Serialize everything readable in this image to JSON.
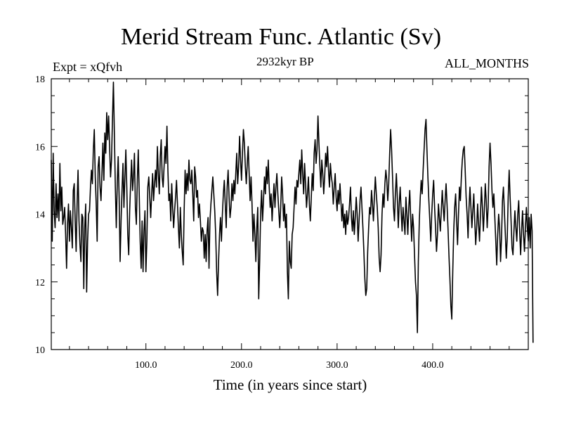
{
  "chart_data": {
    "type": "line",
    "title": "Merid Stream Func. Atlantic (Sv)",
    "subtitle": "2932kyr BP",
    "experiment_label": "Expt = xQfvh",
    "period_label": "ALL_MONTHS",
    "xlabel": "Time (in years since start)",
    "ylabel": "",
    "xlim": [
      1,
      500
    ],
    "ylim": [
      10,
      18
    ],
    "x_ticks": [
      100.0,
      200.0,
      300.0,
      400.0
    ],
    "x_tick_labels": [
      "100.0",
      "200.0",
      "300.0",
      "400.0"
    ],
    "y_ticks": [
      10,
      12,
      14,
      16,
      18
    ],
    "y_tick_labels": [
      "10",
      "12",
      "14",
      "16",
      "18"
    ],
    "series": [
      {
        "name": "Merid Stream Func. Atlantic",
        "x_start": 1,
        "x_step": 1,
        "values": [
          15.6,
          13.2,
          15.8,
          14.1,
          13.6,
          14.9,
          13.9,
          14.6,
          13.8,
          15.5,
          14.1,
          14.8,
          13.7,
          13.9,
          14.2,
          13.4,
          12.4,
          13.7,
          14.3,
          13.2,
          14.1,
          13.6,
          13.0,
          14.7,
          14.9,
          13.8,
          12.9,
          14.3,
          15.3,
          13.8,
          13.1,
          12.6,
          14.0,
          13.9,
          11.8,
          13.6,
          14.3,
          11.7,
          13.2,
          14.0,
          14.1,
          14.8,
          15.3,
          14.9,
          15.9,
          16.5,
          15.1,
          14.3,
          13.2,
          15.4,
          15.7,
          14.8,
          14.4,
          15.2,
          16.1,
          15.0,
          16.4,
          15.8,
          17.0,
          16.2,
          16.9,
          16.0,
          15.1,
          15.6,
          16.8,
          17.9,
          16.4,
          14.8,
          13.6,
          14.9,
          15.7,
          14.5,
          12.6,
          13.8,
          14.7,
          15.5,
          14.2,
          15.1,
          15.9,
          14.8,
          13.4,
          12.8,
          14.1,
          14.9,
          15.6,
          14.7,
          15.1,
          15.8,
          14.2,
          13.7,
          15.0,
          15.9,
          14.6,
          13.2,
          12.4,
          13.8,
          12.3,
          13.5,
          14.1,
          12.3,
          13.2,
          14.8,
          15.1,
          14.5,
          13.9,
          14.6,
          15.2,
          14.4,
          14.9,
          15.3,
          14.8,
          16.0,
          15.2,
          14.6,
          15.7,
          16.2,
          15.1,
          14.8,
          15.4,
          16.0,
          15.5,
          16.6,
          15.3,
          14.4,
          14.6,
          13.8,
          14.9,
          14.2,
          13.6,
          14.1,
          14.5,
          15.0,
          14.3,
          13.6,
          13.0,
          14.2,
          13.4,
          12.9,
          12.5,
          14.1,
          15.3,
          14.6,
          15.2,
          14.7,
          15.6,
          15.0,
          14.9,
          15.3,
          14.6,
          13.8,
          15.4,
          15.1,
          14.5,
          14.7,
          13.9,
          14.3,
          13.8,
          13.2,
          13.6,
          13.5,
          12.7,
          13.4,
          12.6,
          13.5,
          13.9,
          12.4,
          13.8,
          14.3,
          14.7,
          15.1,
          14.6,
          14.1,
          13.4,
          12.3,
          11.6,
          12.6,
          13.4,
          13.9,
          13.2,
          14.0,
          14.6,
          15.0,
          14.3,
          13.6,
          14.8,
          15.3,
          14.5,
          13.9,
          14.2,
          14.9,
          14.4,
          15.0,
          14.6,
          15.2,
          15.8,
          14.9,
          15.4,
          16.3,
          15.6,
          15.0,
          15.8,
          16.5,
          16.1,
          15.4,
          14.9,
          15.5,
          16.0,
          15.2,
          14.4,
          15.1,
          14.3,
          13.2,
          14.0,
          13.4,
          12.6,
          13.6,
          14.2,
          11.5,
          12.6,
          14.0,
          14.7,
          13.8,
          14.4,
          15.1,
          14.6,
          15.4,
          14.9,
          15.6,
          14.8,
          14.2,
          14.6,
          13.8,
          14.4,
          14.9,
          14.2,
          14.8,
          15.2,
          14.6,
          14.1,
          13.6,
          14.2,
          15.1,
          14.6,
          13.8,
          14.3,
          13.6,
          14.0,
          12.3,
          11.5,
          13.2,
          12.6,
          12.4,
          13.4,
          13.6,
          14.2,
          14.8,
          14.3,
          15.0,
          14.8,
          15.2,
          15.6,
          14.9,
          15.9,
          15.2,
          14.6,
          15.5,
          14.9,
          14.2,
          14.6,
          15.1,
          14.3,
          13.8,
          14.5,
          15.2,
          14.7,
          15.8,
          16.2,
          15.5,
          15.9,
          16.9,
          16.1,
          15.4,
          14.8,
          15.6,
          15.2,
          14.6,
          15.1,
          15.8,
          15.4,
          16.0,
          15.3,
          14.8,
          15.5,
          15.1,
          14.9,
          14.3,
          14.8,
          15.2,
          14.5,
          14.1,
          14.7,
          14.3,
          14.9,
          14.4,
          13.8,
          14.3,
          13.6,
          14.0,
          13.4,
          14.1,
          13.7,
          13.9,
          14.3,
          14.8,
          13.9,
          13.5,
          14.1,
          13.4,
          13.9,
          14.5,
          14.0,
          13.2,
          13.8,
          14.4,
          14.8,
          14.2,
          13.6,
          12.9,
          12.1,
          11.6,
          11.8,
          12.9,
          13.6,
          14.2,
          14.0,
          14.7,
          14.3,
          13.8,
          14.5,
          15.1,
          14.6,
          14.2,
          13.6,
          12.7,
          12.3,
          12.8,
          14.0,
          14.6,
          14.2,
          14.9,
          15.3,
          15.0,
          14.4,
          14.9,
          15.8,
          16.5,
          15.9,
          15.1,
          14.2,
          13.8,
          14.6,
          15.2,
          14.5,
          13.6,
          14.3,
          14.8,
          14.1,
          13.5,
          14.2,
          13.8,
          13.4,
          14.5,
          14.0,
          13.4,
          14.2,
          14.7,
          13.9,
          13.2,
          14.0,
          13.6,
          12.8,
          12.0,
          11.6,
          10.5,
          12.6,
          13.8,
          14.5,
          15.0,
          14.6,
          15.3,
          15.9,
          16.5,
          16.8,
          15.9,
          15.1,
          14.4,
          13.8,
          13.2,
          14.0,
          14.6,
          15.0,
          14.2,
          13.6,
          12.9,
          13.4,
          14.3,
          13.9,
          13.5,
          14.1,
          14.7,
          14.2,
          13.8,
          14.4,
          14.9,
          14.3,
          13.6,
          12.8,
          12.1,
          11.3,
          10.9,
          12.3,
          13.5,
          14.2,
          14.6,
          13.8,
          13.1,
          14.0,
          14.8,
          14.4,
          15.1,
          15.6,
          15.9,
          16.0,
          15.3,
          14.5,
          14.0,
          13.3,
          14.2,
          14.8,
          14.2,
          13.6,
          14.1,
          14.6,
          13.8,
          13.1,
          13.6,
          14.3,
          13.7,
          13.2,
          14.0,
          14.8,
          14.2,
          13.5,
          14.1,
          14.9,
          14.4,
          13.6,
          14.2,
          15.4,
          16.1,
          15.5,
          14.7,
          14.2,
          14.6,
          13.9,
          13.2,
          12.5,
          13.4,
          14.0,
          13.6,
          12.6,
          13.3,
          14.4,
          14.8,
          14.1,
          13.4,
          12.7,
          13.3,
          14.5,
          15.3,
          14.5,
          13.8,
          13.0,
          12.8,
          13.5,
          14.1,
          13.6,
          13.2,
          14.0,
          14.4,
          13.5,
          12.8,
          13.5,
          14.1,
          13.4,
          12.9,
          13.6,
          14.2,
          13.6,
          13.2,
          13.9,
          13.0,
          14.0,
          13.5,
          10.2
        ]
      }
    ]
  }
}
